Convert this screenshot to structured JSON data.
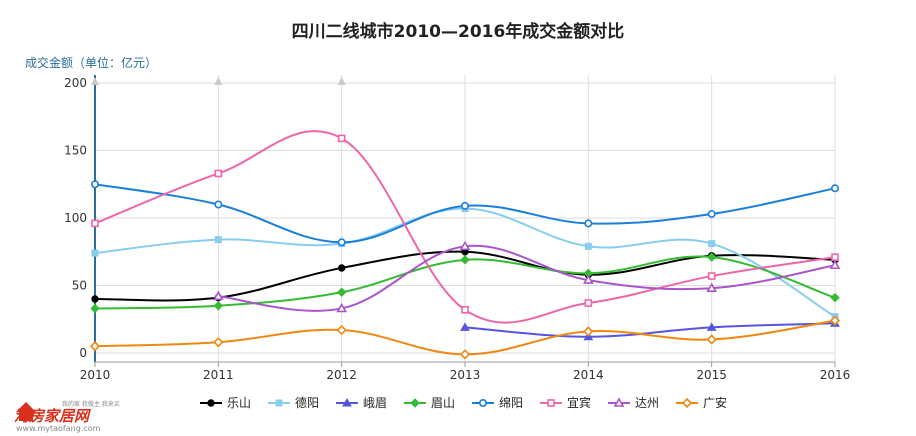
{
  "chart_data": {
    "type": "line",
    "title": "四川二线城市2010—2016年成交金额对比",
    "ylabel": "成交金额（单位：亿元）",
    "xlabel": "",
    "x": [
      "2010",
      "2011",
      "2012",
      "2013",
      "2014",
      "2015",
      "2016"
    ],
    "yticks": [
      "0",
      "50",
      "100",
      "150",
      "200"
    ],
    "ylim": [
      0,
      200
    ],
    "grid": true,
    "legend_position": "bottom",
    "series": [
      {
        "name": "乐山",
        "color": "#000000",
        "marker": "circle-filled",
        "values": [
          40,
          41,
          63,
          75,
          58,
          72,
          69
        ]
      },
      {
        "name": "德阳",
        "color": "#88ccee",
        "marker": "square-filled",
        "values": [
          74,
          84,
          81,
          107,
          79,
          81,
          27
        ]
      },
      {
        "name": "峨眉",
        "color": "#5555dd",
        "marker": "triangle-filled",
        "values": [
          null,
          null,
          null,
          19,
          12,
          19,
          22
        ]
      },
      {
        "name": "眉山",
        "color": "#33bb33",
        "marker": "diamond-filled",
        "values": [
          33,
          35,
          45,
          69,
          59,
          71,
          41
        ]
      },
      {
        "name": "绵阳",
        "color": "#1a7fd8",
        "marker": "circle-open",
        "values": [
          125,
          110,
          82,
          109,
          96,
          103,
          122
        ]
      },
      {
        "name": "宜宾",
        "color": "#ee66aa",
        "marker": "square-open",
        "values": [
          96,
          133,
          159,
          32,
          37,
          57,
          71
        ]
      },
      {
        "name": "达州",
        "color": "#aa55cc",
        "marker": "triangle-open",
        "values": [
          null,
          42,
          33,
          79,
          54,
          48,
          65
        ]
      },
      {
        "name": "广安",
        "color": "#ee8811",
        "marker": "diamond-open",
        "values": [
          5,
          8,
          17,
          -1,
          16,
          10,
          24
        ]
      }
    ]
  },
  "watermark": {
    "brand": "淘房家居网",
    "tagline": "我的家 我做主 我来买",
    "url": "www.mytaofang.com"
  }
}
